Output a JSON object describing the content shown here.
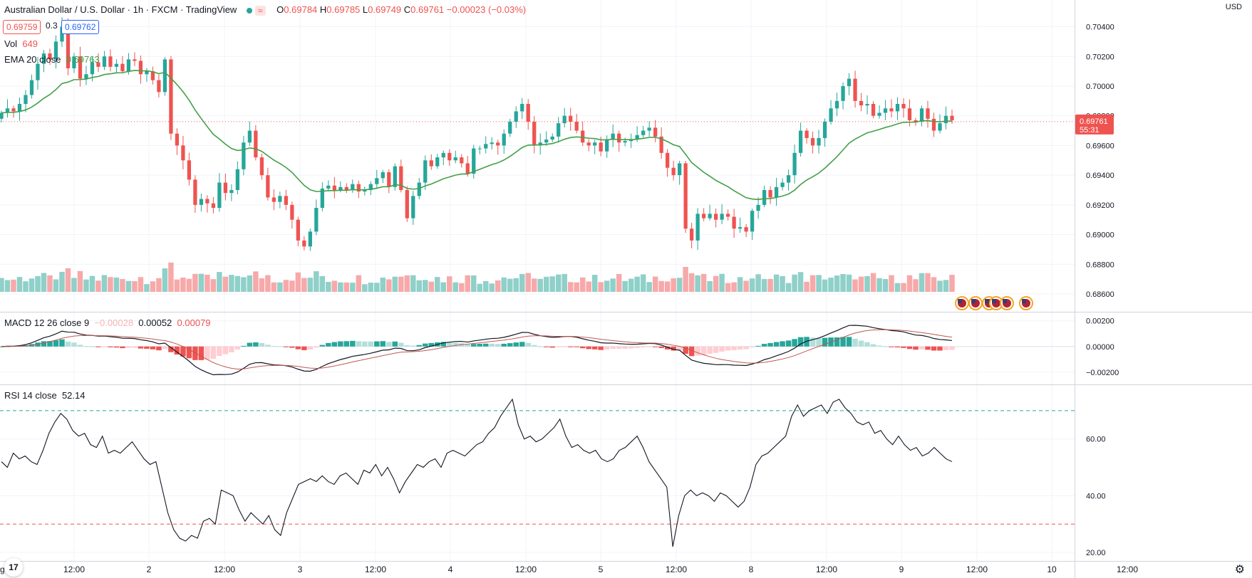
{
  "header": {
    "symbol": "Australian Dollar / U.S. Dollar · 1h · FXCM · TradingView",
    "open_label": "O",
    "open": "0.69784",
    "high_label": "H",
    "high": "0.69785",
    "low_label": "L",
    "low": "0.69749",
    "close_label": "C",
    "close": "0.69761",
    "change": "−0.00023 (−0.03%)",
    "wave_glyph": "≈"
  },
  "price_boxes": {
    "sell": "0.69759",
    "spread": "0.3",
    "buy": "0.69762"
  },
  "volume": {
    "label": "Vol",
    "value": "649"
  },
  "ema": {
    "label": "EMA 20 close",
    "value": "0.69763"
  },
  "macd": {
    "label": "MACD 12 26 close 9",
    "v1": "−0.00028",
    "v2": "0.00052",
    "v3": "0.00079"
  },
  "rsi": {
    "label": "RSI 14 close",
    "value": "52.14"
  },
  "currency": "USD",
  "last_price_tag": {
    "price": "0.69761",
    "countdown": "55:31"
  },
  "logo_text": "17",
  "settings_icon": "gear-icon",
  "colors": {
    "up": "#26a69a",
    "down": "#ef5350",
    "ema": "#43a047",
    "up_vol": "#8fd0c9",
    "down_vol": "#f7a9a9"
  },
  "chart_data": [
    {
      "type": "candlestick",
      "title": "Australian Dollar / U.S. Dollar · 1h · FXCM",
      "y_ticks": [
        "0.70400",
        "0.70200",
        "0.70000",
        "0.69800",
        "0.69600",
        "0.69400",
        "0.69200",
        "0.69000",
        "0.68800",
        "0.68600"
      ],
      "ylim": [
        0.6848,
        0.7058
      ],
      "x_ticks": [
        "g",
        "12:00",
        "2",
        "12:00",
        "3",
        "12:00",
        "4",
        "12:00",
        "5",
        "12:00",
        "8",
        "12:00",
        "9",
        "12:00",
        "10",
        "12:00"
      ],
      "close_anchors": [
        0.6982,
        0.6985,
        0.6983,
        0.6988,
        0.6994,
        0.7004,
        0.7015,
        0.7022,
        0.7018,
        0.703,
        0.704,
        0.7012,
        0.702,
        0.7005,
        0.7008,
        0.7016,
        0.7013,
        0.702,
        0.7013,
        0.7015,
        0.701,
        0.7018,
        0.7017,
        0.7008,
        0.701,
        0.7004,
        0.6996,
        0.7018,
        0.6968,
        0.696,
        0.695,
        0.6937,
        0.692,
        0.6924,
        0.6921,
        0.6918,
        0.6935,
        0.6928,
        0.693,
        0.6944,
        0.6962,
        0.697,
        0.6952,
        0.694,
        0.6925,
        0.6922,
        0.6926,
        0.692,
        0.691,
        0.6896,
        0.6892,
        0.6902,
        0.6918,
        0.6931,
        0.6933,
        0.693,
        0.6932,
        0.693,
        0.6934,
        0.6929,
        0.693,
        0.6934,
        0.6938,
        0.6942,
        0.6932,
        0.6946,
        0.693,
        0.6911,
        0.6926,
        0.6935,
        0.695,
        0.6946,
        0.6952,
        0.6955,
        0.695,
        0.6952,
        0.6948,
        0.6941,
        0.6958,
        0.6958,
        0.6961,
        0.6962,
        0.696,
        0.6968,
        0.6976,
        0.6983,
        0.6988,
        0.6976,
        0.696,
        0.6962,
        0.6964,
        0.6966,
        0.6975,
        0.698,
        0.6976,
        0.697,
        0.6962,
        0.696,
        0.6962,
        0.6956,
        0.6964,
        0.6968,
        0.6962,
        0.6963,
        0.6964,
        0.6967,
        0.697,
        0.6972,
        0.6966,
        0.6955,
        0.6945,
        0.694,
        0.6948,
        0.6904,
        0.6896,
        0.6914,
        0.6911,
        0.6914,
        0.691,
        0.6914,
        0.6912,
        0.6904,
        0.6905,
        0.6902,
        0.6916,
        0.692,
        0.693,
        0.6925,
        0.6932,
        0.6935,
        0.694,
        0.6955,
        0.697,
        0.6965,
        0.696,
        0.6965,
        0.6976,
        0.6985,
        0.699,
        0.7,
        0.7005,
        0.699,
        0.6987,
        0.6988,
        0.698,
        0.6982,
        0.6985,
        0.6983,
        0.6988,
        0.6985,
        0.6977,
        0.6976,
        0.6985,
        0.6978,
        0.697,
        0.6975,
        0.698,
        0.6977
      ],
      "ema20": {
        "start": 0.6982,
        "last": 0.69763
      },
      "volume": {
        "label": "Vol",
        "last": 649
      }
    },
    {
      "type": "macd",
      "params": "12 26 close 9",
      "y_ticks": [
        "0.00200",
        "0.00000",
        "−0.00200"
      ],
      "ylim": [
        -0.00295,
        0.00265
      ],
      "last": {
        "hist": -0.00028,
        "macd": 0.00052,
        "signal": 0.00079
      }
    },
    {
      "type": "line",
      "name": "RSI 14 close",
      "y_ticks": [
        "60.00",
        "40.00",
        "20.00"
      ],
      "ylim": [
        17,
        79
      ],
      "bands": [
        70,
        30
      ],
      "values": [
        52,
        50,
        55,
        53,
        54,
        52,
        51,
        56,
        62,
        66,
        69,
        67,
        63,
        61,
        62,
        58,
        57,
        61,
        55,
        56,
        55,
        57,
        59,
        56,
        53,
        51,
        52,
        43,
        34,
        28,
        25,
        24,
        26,
        25,
        31,
        32,
        30,
        42,
        41,
        40,
        35,
        31,
        34,
        32,
        30,
        33,
        28,
        26,
        34,
        39,
        44,
        45,
        46,
        45,
        47,
        45,
        44,
        47,
        48,
        46,
        44,
        49,
        48,
        51,
        47,
        50,
        46,
        41,
        45,
        48,
        51,
        50,
        52,
        53,
        50,
        55,
        56,
        55,
        54,
        56,
        58,
        59,
        62,
        64,
        68,
        71,
        74,
        65,
        60,
        61,
        59,
        60,
        62,
        64,
        67,
        61,
        57,
        58,
        56,
        55,
        56,
        53,
        52,
        53,
        56,
        57,
        59,
        61,
        57,
        52,
        49,
        46,
        43,
        22,
        33,
        40,
        42,
        40,
        41,
        40,
        38,
        41,
        40,
        38,
        36,
        38,
        43,
        51,
        54,
        55,
        57,
        59,
        61,
        68,
        72,
        68,
        70,
        71,
        72,
        69,
        73,
        74,
        71,
        69,
        66,
        65,
        66,
        62,
        63,
        60,
        58,
        61,
        58,
        56,
        57,
        54,
        55,
        57,
        55,
        53,
        52
      ]
    }
  ]
}
